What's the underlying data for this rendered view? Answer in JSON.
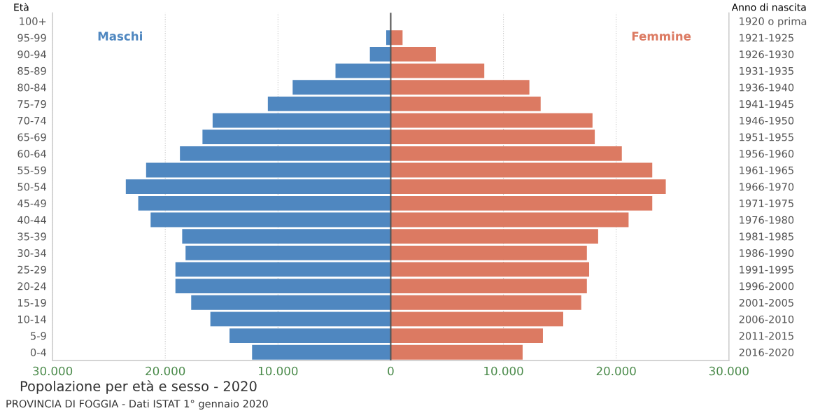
{
  "chart_data": {
    "type": "bar",
    "orientation": "horizontal",
    "stacked": true,
    "title": "Popolazione per età e sesso - 2020",
    "ylabel": "Età",
    "y2label": "Anno di nascita",
    "categories": [
      "100+",
      "95-99",
      "90-94",
      "85-89",
      "80-84",
      "75-79",
      "70-74",
      "65-69",
      "60-64",
      "55-59",
      "50-54",
      "45-49",
      "40-44",
      "35-39",
      "30-34",
      "25-29",
      "20-24",
      "15-19",
      "10-14",
      "5-9",
      "0-4"
    ],
    "y2_categories": [
      "1920 o prima",
      "1921-1925",
      "1926-1930",
      "1931-1935",
      "1936-1940",
      "1941-1945",
      "1946-1950",
      "1951-1955",
      "1956-1960",
      "1961-1965",
      "1966-1970",
      "1971-1975",
      "1976-1980",
      "1981-1985",
      "1986-1990",
      "1991-1995",
      "1996-2000",
      "2001-2005",
      "2006-2010",
      "2011-2015",
      "2016-2020"
    ],
    "series": [
      {
        "name": "Maschi",
        "color": "#4f87c0",
        "values": [
          null,
          -400,
          -1850,
          -4900,
          -8700,
          -10900,
          -15800,
          -16700,
          -18700,
          -21700,
          -23500,
          -22400,
          -21300,
          -18500,
          -18200,
          -19100,
          -19100,
          -17700,
          -16000,
          -14300,
          -12300
        ]
      },
      {
        "name": "Femmine",
        "color": "#dc7a62",
        "values": [
          null,
          1050,
          4000,
          8300,
          12300,
          13300,
          17900,
          18100,
          20500,
          23200,
          24400,
          23200,
          21100,
          18400,
          17400,
          17600,
          17400,
          16900,
          15300,
          13500,
          11700
        ]
      }
    ],
    "xlim": [
      -30000,
      30000
    ],
    "xticks": [
      {
        "value": -30000,
        "label": "30.000"
      },
      {
        "value": -20000,
        "label": "20.000"
      },
      {
        "value": -10000,
        "label": "10.000"
      },
      0,
      {
        "value": 10000,
        "label": "10.000"
      },
      {
        "value": 20000,
        "label": "20.000"
      },
      {
        "value": 30000,
        "label": "30.000"
      }
    ],
    "grid": "x",
    "ref_lines": [
      {
        "axis": "x",
        "value": 0,
        "color": "#555555"
      }
    ],
    "annotations": [
      "PROVINCIA DI FOGGIA - Dati ISTAT 1° gennaio 2020"
    ]
  }
}
